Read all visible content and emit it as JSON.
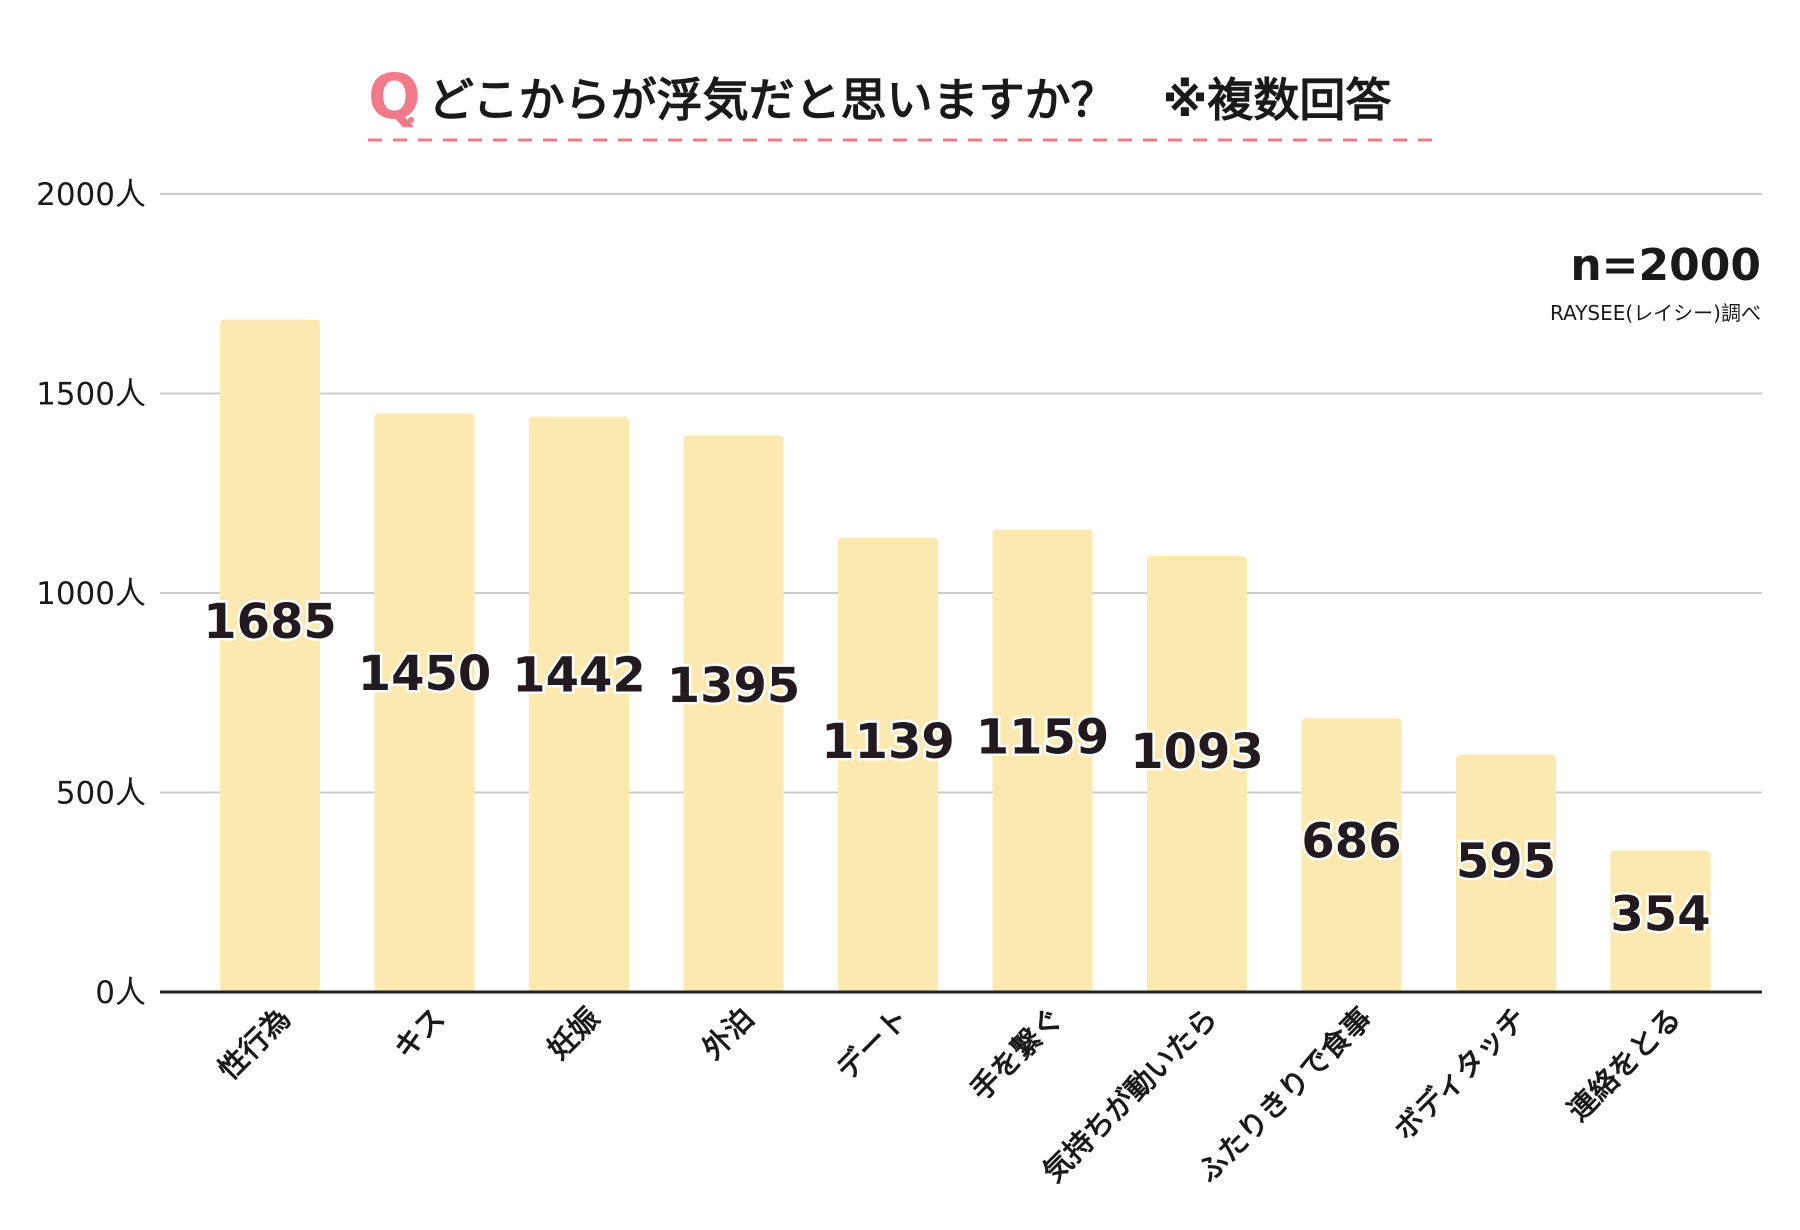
{
  "colors": {
    "bar": "#fbe9b0",
    "accent": "#f07a8a",
    "grid": "#cccccc",
    "axis": "#222222",
    "text": "#1a1a1a",
    "value_text": "#231a20"
  },
  "title": {
    "q_mark": "Q",
    "text": "どこからが浮気だと思いますか？　※複数回答"
  },
  "annotation": {
    "n": "n=2000",
    "source": "RAYSEE(レイシー)調べ"
  },
  "chart_data": {
    "type": "bar",
    "title": "どこからが浮気だと思いますか？　※複数回答",
    "xlabel": "",
    "ylabel": "",
    "ylim": [
      0,
      2000
    ],
    "yticks": [
      0,
      500,
      1000,
      1500,
      2000
    ],
    "ytick_suffix": "人",
    "grid": true,
    "categories": [
      "性行為",
      "キス",
      "妊娠",
      "外泊",
      "デート",
      "手を繋ぐ",
      "気持ちが動いたら",
      "ふたりきりで食事",
      "ボディタッチ",
      "連絡をとる"
    ],
    "values": [
      1685,
      1450,
      1442,
      1395,
      1139,
      1159,
      1093,
      686,
      595,
      354
    ]
  }
}
